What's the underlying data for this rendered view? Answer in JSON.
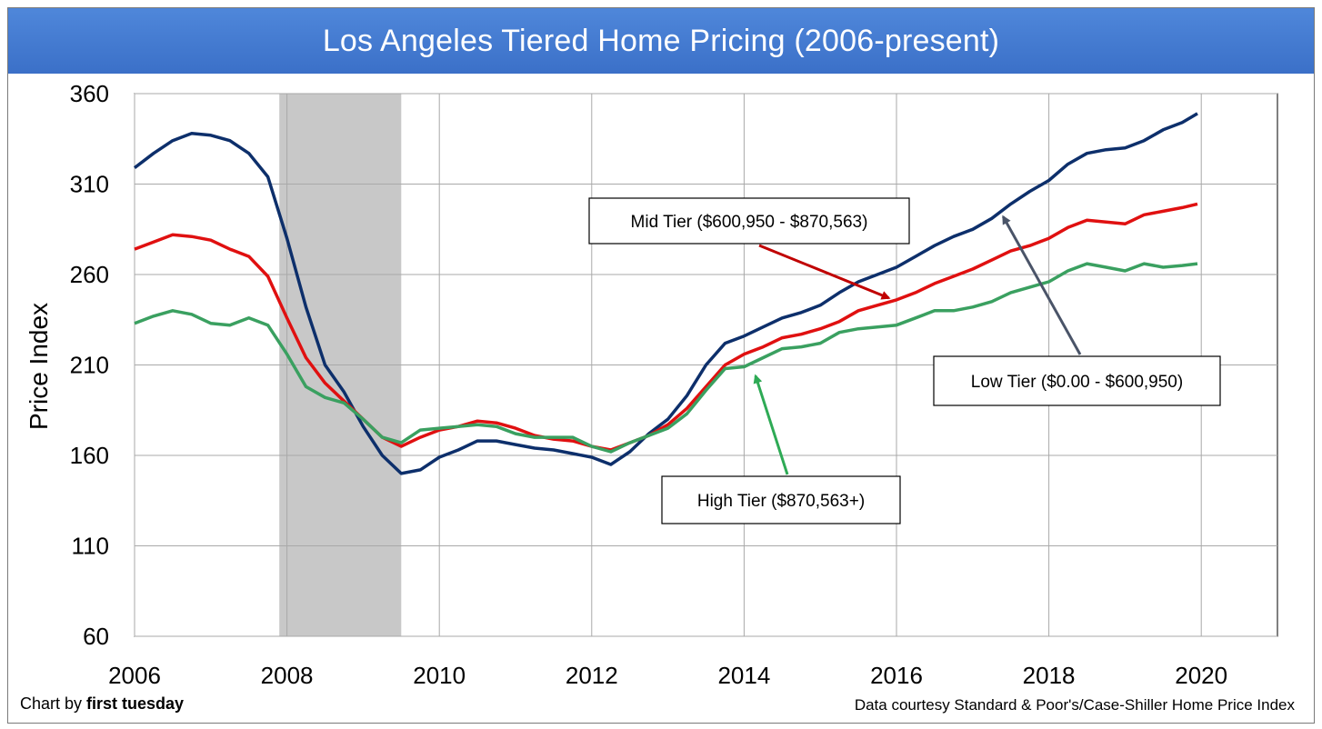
{
  "title": "Los Angeles Tiered Home Pricing (2006-present)",
  "footer": {
    "credit_prefix": "Chart by ",
    "credit_name": "first tuesday",
    "source": "Data courtesy Standard & Poor's/Case-Shiller Home Price Index"
  },
  "colors": {
    "low": "#0d2f6b",
    "mid": "#e01010",
    "high": "#3aa060",
    "recession": "#c8c8c8",
    "title_bar": "#4a80d4"
  },
  "chart_data": {
    "type": "line",
    "title": "Los Angeles Tiered Home Pricing (2006-present)",
    "xlabel": "",
    "ylabel": "Price Index",
    "xlim": [
      2006,
      2021
    ],
    "ylim": [
      60,
      360
    ],
    "x_ticks": [
      "2006",
      "2008",
      "2010",
      "2012",
      "2014",
      "2016",
      "2018",
      "2020"
    ],
    "y_ticks": [
      "60",
      "110",
      "160",
      "210",
      "260",
      "310",
      "360"
    ],
    "grid": true,
    "shaded_period": {
      "start": 2007.9,
      "end": 2009.5
    },
    "series": [
      {
        "name": "Low Tier ($0.00 - $600,950)",
        "color": "#0d2f6b",
        "points": [
          [
            2006.0,
            319
          ],
          [
            2006.25,
            327
          ],
          [
            2006.5,
            334
          ],
          [
            2006.75,
            338
          ],
          [
            2007.0,
            337
          ],
          [
            2007.25,
            334
          ],
          [
            2007.5,
            327
          ],
          [
            2007.75,
            314
          ],
          [
            2008.0,
            280
          ],
          [
            2008.25,
            242
          ],
          [
            2008.5,
            210
          ],
          [
            2008.75,
            195
          ],
          [
            2009.0,
            176
          ],
          [
            2009.25,
            160
          ],
          [
            2009.5,
            150
          ],
          [
            2009.75,
            152
          ],
          [
            2010.0,
            159
          ],
          [
            2010.25,
            163
          ],
          [
            2010.5,
            168
          ],
          [
            2010.75,
            168
          ],
          [
            2011.0,
            166
          ],
          [
            2011.25,
            164
          ],
          [
            2011.5,
            163
          ],
          [
            2011.75,
            161
          ],
          [
            2012.0,
            159
          ],
          [
            2012.25,
            155
          ],
          [
            2012.5,
            162
          ],
          [
            2012.75,
            172
          ],
          [
            2013.0,
            180
          ],
          [
            2013.25,
            193
          ],
          [
            2013.5,
            210
          ],
          [
            2013.75,
            222
          ],
          [
            2014.0,
            226
          ],
          [
            2014.25,
            231
          ],
          [
            2014.5,
            236
          ],
          [
            2014.75,
            239
          ],
          [
            2015.0,
            243
          ],
          [
            2015.25,
            250
          ],
          [
            2015.5,
            256
          ],
          [
            2015.75,
            260
          ],
          [
            2016.0,
            264
          ],
          [
            2016.25,
            270
          ],
          [
            2016.5,
            276
          ],
          [
            2016.75,
            281
          ],
          [
            2017.0,
            285
          ],
          [
            2017.25,
            291
          ],
          [
            2017.5,
            299
          ],
          [
            2017.75,
            306
          ],
          [
            2018.0,
            312
          ],
          [
            2018.25,
            321
          ],
          [
            2018.5,
            327
          ],
          [
            2018.75,
            329
          ],
          [
            2019.0,
            330
          ],
          [
            2019.25,
            334
          ],
          [
            2019.5,
            340
          ],
          [
            2019.75,
            344
          ],
          [
            2019.95,
            349
          ]
        ]
      },
      {
        "name": "Mid Tier ($600,950 - $870,563)",
        "color": "#e01010",
        "points": [
          [
            2006.0,
            274
          ],
          [
            2006.25,
            278
          ],
          [
            2006.5,
            282
          ],
          [
            2006.75,
            281
          ],
          [
            2007.0,
            279
          ],
          [
            2007.25,
            274
          ],
          [
            2007.5,
            270
          ],
          [
            2007.75,
            259
          ],
          [
            2008.0,
            236
          ],
          [
            2008.25,
            214
          ],
          [
            2008.5,
            200
          ],
          [
            2008.75,
            190
          ],
          [
            2009.0,
            180
          ],
          [
            2009.25,
            170
          ],
          [
            2009.5,
            165
          ],
          [
            2009.75,
            170
          ],
          [
            2010.0,
            174
          ],
          [
            2010.25,
            176
          ],
          [
            2010.5,
            179
          ],
          [
            2010.75,
            178
          ],
          [
            2011.0,
            175
          ],
          [
            2011.25,
            171
          ],
          [
            2011.5,
            169
          ],
          [
            2011.75,
            168
          ],
          [
            2012.0,
            165
          ],
          [
            2012.25,
            163
          ],
          [
            2012.5,
            167
          ],
          [
            2012.75,
            171
          ],
          [
            2013.0,
            177
          ],
          [
            2013.25,
            186
          ],
          [
            2013.5,
            198
          ],
          [
            2013.75,
            210
          ],
          [
            2014.0,
            216
          ],
          [
            2014.25,
            220
          ],
          [
            2014.5,
            225
          ],
          [
            2014.75,
            227
          ],
          [
            2015.0,
            230
          ],
          [
            2015.25,
            234
          ],
          [
            2015.5,
            240
          ],
          [
            2015.75,
            243
          ],
          [
            2016.0,
            246
          ],
          [
            2016.25,
            250
          ],
          [
            2016.5,
            255
          ],
          [
            2016.75,
            259
          ],
          [
            2017.0,
            263
          ],
          [
            2017.25,
            268
          ],
          [
            2017.5,
            273
          ],
          [
            2017.75,
            276
          ],
          [
            2018.0,
            280
          ],
          [
            2018.25,
            286
          ],
          [
            2018.5,
            290
          ],
          [
            2018.75,
            289
          ],
          [
            2019.0,
            288
          ],
          [
            2019.25,
            293
          ],
          [
            2019.5,
            295
          ],
          [
            2019.75,
            297
          ],
          [
            2019.95,
            299
          ]
        ]
      },
      {
        "name": "High Tier ($870,563+)",
        "color": "#3aa060",
        "points": [
          [
            2006.0,
            233
          ],
          [
            2006.25,
            237
          ],
          [
            2006.5,
            240
          ],
          [
            2006.75,
            238
          ],
          [
            2007.0,
            233
          ],
          [
            2007.25,
            232
          ],
          [
            2007.5,
            236
          ],
          [
            2007.75,
            232
          ],
          [
            2008.0,
            216
          ],
          [
            2008.25,
            198
          ],
          [
            2008.5,
            192
          ],
          [
            2008.75,
            189
          ],
          [
            2009.0,
            180
          ],
          [
            2009.25,
            170
          ],
          [
            2009.5,
            167
          ],
          [
            2009.75,
            174
          ],
          [
            2010.0,
            175
          ],
          [
            2010.25,
            176
          ],
          [
            2010.5,
            177
          ],
          [
            2010.75,
            176
          ],
          [
            2011.0,
            172
          ],
          [
            2011.25,
            170
          ],
          [
            2011.5,
            170
          ],
          [
            2011.75,
            170
          ],
          [
            2012.0,
            165
          ],
          [
            2012.25,
            162
          ],
          [
            2012.5,
            167
          ],
          [
            2012.75,
            171
          ],
          [
            2013.0,
            175
          ],
          [
            2013.25,
            183
          ],
          [
            2013.5,
            196
          ],
          [
            2013.75,
            208
          ],
          [
            2014.0,
            209
          ],
          [
            2014.25,
            214
          ],
          [
            2014.5,
            219
          ],
          [
            2014.75,
            220
          ],
          [
            2015.0,
            222
          ],
          [
            2015.25,
            228
          ],
          [
            2015.5,
            230
          ],
          [
            2015.75,
            231
          ],
          [
            2016.0,
            232
          ],
          [
            2016.25,
            236
          ],
          [
            2016.5,
            240
          ],
          [
            2016.75,
            240
          ],
          [
            2017.0,
            242
          ],
          [
            2017.25,
            245
          ],
          [
            2017.5,
            250
          ],
          [
            2017.75,
            253
          ],
          [
            2018.0,
            256
          ],
          [
            2018.25,
            262
          ],
          [
            2018.5,
            266
          ],
          [
            2018.75,
            264
          ],
          [
            2019.0,
            262
          ],
          [
            2019.25,
            266
          ],
          [
            2019.5,
            264
          ],
          [
            2019.75,
            265
          ],
          [
            2019.95,
            266
          ]
        ]
      }
    ],
    "annotations": [
      {
        "text": "Mid Tier ($600,950 - $870,563)",
        "series": "Mid Tier ($600,950 - $870,563)",
        "points_to": [
          2015.9,
          247
        ]
      },
      {
        "text": "Low Tier ($0.00 - $600,950)",
        "series": "Low Tier ($0.00 - $600,950)",
        "points_to": [
          2017.4,
          292
        ]
      },
      {
        "text": "High Tier ($870,563+)",
        "series": "High Tier ($870,563+)",
        "points_to": [
          2014.15,
          204
        ]
      }
    ]
  }
}
